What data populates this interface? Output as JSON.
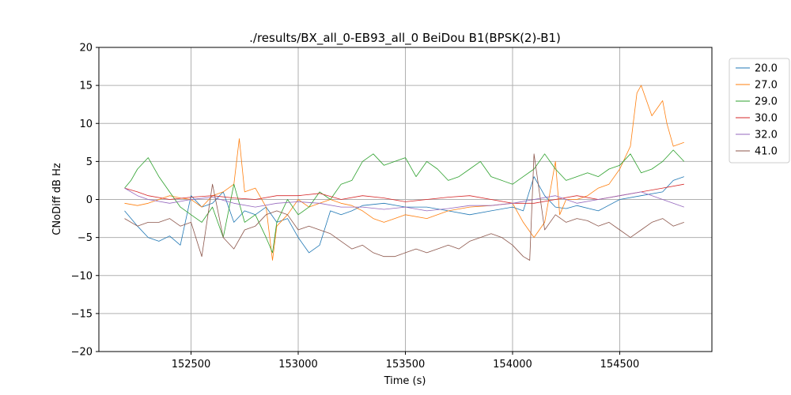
{
  "chart_data": {
    "type": "line",
    "title": "./results/BX_all_0-EB93_all_0 BeiDou B1(BPSK(2)-B1)",
    "xlabel": "Time (s)",
    "ylabel": "CNoDiff dB Hz",
    "xlim": [
      152070,
      154930
    ],
    "ylim": [
      -20,
      20
    ],
    "xticks": [
      152500,
      153000,
      153500,
      154000,
      154500
    ],
    "xtick_labels": [
      "152500",
      "153000",
      "153500",
      "154000",
      "154500"
    ],
    "yticks": [
      -20,
      -15,
      -10,
      -5,
      0,
      5,
      10,
      15,
      20
    ],
    "ytick_labels": [
      "−20",
      "−15",
      "−10",
      "−5",
      "0",
      "5",
      "10",
      "15",
      "20"
    ],
    "grid": true,
    "legend_position": "outside-top-right",
    "series": [
      {
        "name": "20.0",
        "color": "#1f77b4",
        "x": [
          152190,
          152250,
          152300,
          152350,
          152400,
          152450,
          152500,
          152550,
          152600,
          152650,
          152700,
          152750,
          152800,
          152850,
          152900,
          152950,
          153000,
          153050,
          153100,
          153150,
          153200,
          153250,
          153300,
          153400,
          153500,
          153600,
          153700,
          153800,
          153900,
          154000,
          154050,
          154100,
          154150,
          154200,
          154250,
          154300,
          154400,
          154500,
          154600,
          154700,
          154750,
          154800
        ],
        "y": [
          -1.5,
          -3.5,
          -5.0,
          -5.5,
          -4.8,
          -6.0,
          0.5,
          -1.0,
          -0.5,
          1.0,
          -3.0,
          -1.5,
          -2.0,
          -1.0,
          -3.0,
          -2.5,
          -5.0,
          -7.0,
          -6.0,
          -1.5,
          -2.0,
          -1.5,
          -0.8,
          -0.5,
          -1.0,
          -1.0,
          -1.5,
          -2.0,
          -1.5,
          -1.0,
          -1.5,
          3.0,
          0.5,
          -1.0,
          -1.2,
          -0.8,
          -1.5,
          0.0,
          0.5,
          1.0,
          2.5,
          3.0
        ]
      },
      {
        "name": "27.0",
        "color": "#ff7f0e",
        "x": [
          152190,
          152250,
          152300,
          152350,
          152400,
          152450,
          152500,
          152550,
          152600,
          152650,
          152700,
          152725,
          152750,
          152800,
          152850,
          152880,
          152900,
          152950,
          153000,
          153050,
          153100,
          153150,
          153200,
          153250,
          153300,
          153350,
          153400,
          153450,
          153500,
          153600,
          153700,
          153800,
          153900,
          154000,
          154050,
          154100,
          154150,
          154200,
          154220,
          154250,
          154300,
          154350,
          154400,
          154450,
          154500,
          154550,
          154580,
          154600,
          154650,
          154700,
          154720,
          154750,
          154800
        ],
        "y": [
          -0.5,
          -0.8,
          -0.5,
          0.0,
          0.5,
          0.2,
          0.0,
          -1.0,
          0.5,
          1.0,
          2.0,
          8.0,
          1.0,
          1.5,
          -1.0,
          -8.0,
          -3.5,
          -2.0,
          0.0,
          -1.0,
          -0.5,
          0.0,
          -0.5,
          -0.8,
          -1.5,
          -2.5,
          -3.0,
          -2.5,
          -2.0,
          -2.5,
          -1.5,
          -1.0,
          -0.8,
          -0.5,
          -3.0,
          -5.0,
          -3.0,
          5.0,
          -2.0,
          0.0,
          0.0,
          0.5,
          1.5,
          2.0,
          4.0,
          7.0,
          14.0,
          15.0,
          11.0,
          13.0,
          10.0,
          7.0,
          7.5
        ]
      },
      {
        "name": "29.0",
        "color": "#2ca02c",
        "x": [
          152190,
          152220,
          152250,
          152300,
          152350,
          152400,
          152450,
          152500,
          152550,
          152600,
          152650,
          152700,
          152750,
          152800,
          152850,
          152880,
          152900,
          152950,
          153000,
          153050,
          153100,
          153150,
          153200,
          153250,
          153300,
          153350,
          153400,
          153450,
          153500,
          153550,
          153600,
          153650,
          153700,
          153750,
          153800,
          153850,
          153900,
          153950,
          154000,
          154050,
          154100,
          154150,
          154200,
          154250,
          154300,
          154350,
          154400,
          154450,
          154500,
          154550,
          154600,
          154650,
          154700,
          154750,
          154800
        ],
        "y": [
          1.5,
          2.5,
          4.0,
          5.5,
          3.0,
          1.0,
          -1.0,
          -2.0,
          -3.0,
          -1.0,
          -5.0,
          2.0,
          -3.0,
          -2.0,
          -5.0,
          -7.0,
          -3.0,
          0.0,
          -2.0,
          -1.0,
          1.0,
          0.0,
          2.0,
          2.5,
          5.0,
          6.0,
          4.5,
          5.0,
          5.5,
          3.0,
          5.0,
          4.0,
          2.5,
          3.0,
          4.0,
          5.0,
          3.0,
          2.5,
          2.0,
          3.0,
          4.0,
          6.0,
          4.0,
          2.5,
          3.0,
          3.5,
          3.0,
          4.0,
          4.5,
          6.0,
          3.5,
          4.0,
          5.0,
          6.5,
          5.0
        ]
      },
      {
        "name": "30.0",
        "color": "#d62728",
        "x": [
          152190,
          152250,
          152300,
          152400,
          152500,
          152600,
          152700,
          152800,
          152900,
          153000,
          153100,
          153200,
          153300,
          153400,
          153500,
          153600,
          153700,
          153800,
          153900,
          154000,
          154100,
          154200,
          154300,
          154400,
          154500,
          154600,
          154700,
          154800
        ],
        "y": [
          1.5,
          1.0,
          0.5,
          0.0,
          0.3,
          0.5,
          0.2,
          0.0,
          0.5,
          0.5,
          0.8,
          0.0,
          0.5,
          0.2,
          -0.3,
          0.0,
          0.3,
          0.5,
          0.0,
          -0.5,
          -0.5,
          0.0,
          0.5,
          0.0,
          0.5,
          1.0,
          1.5,
          2.0
        ]
      },
      {
        "name": "32.0",
        "color": "#9467bd",
        "x": [
          152190,
          152250,
          152300,
          152400,
          152500,
          152600,
          152700,
          152800,
          152900,
          153000,
          153100,
          153200,
          153300,
          153400,
          153500,
          153600,
          153700,
          153800,
          153900,
          154000,
          154100,
          154200,
          154300,
          154400,
          154500,
          154600,
          154700,
          154800
        ],
        "y": [
          1.5,
          0.5,
          0.0,
          -0.5,
          0.0,
          0.3,
          -0.5,
          -1.0,
          -0.5,
          -0.3,
          -0.5,
          -1.0,
          -1.0,
          -1.3,
          -1.0,
          -1.5,
          -1.2,
          -0.8,
          -0.8,
          -0.5,
          0.0,
          0.5,
          -0.5,
          0.0,
          0.5,
          1.0,
          0.0,
          -1.0
        ]
      },
      {
        "name": "41.0",
        "color": "#8c564b",
        "x": [
          152190,
          152250,
          152300,
          152350,
          152400,
          152450,
          152500,
          152550,
          152600,
          152650,
          152700,
          152750,
          152800,
          152850,
          152900,
          152950,
          153000,
          153050,
          153100,
          153150,
          153200,
          153250,
          153300,
          153350,
          153400,
          153450,
          153500,
          153550,
          153600,
          153650,
          153700,
          153750,
          153800,
          153850,
          153900,
          153950,
          154000,
          154050,
          154080,
          154100,
          154150,
          154200,
          154250,
          154300,
          154350,
          154400,
          154450,
          154500,
          154550,
          154600,
          154650,
          154700,
          154750,
          154800
        ],
        "y": [
          -2.5,
          -3.5,
          -3.0,
          -3.0,
          -2.5,
          -3.5,
          -3.0,
          -7.5,
          2.0,
          -5.0,
          -6.5,
          -4.0,
          -3.5,
          -2.0,
          -1.5,
          -2.0,
          -4.0,
          -3.5,
          -4.0,
          -4.5,
          -5.5,
          -6.5,
          -6.0,
          -7.0,
          -7.5,
          -7.5,
          -7.0,
          -6.5,
          -7.0,
          -6.5,
          -6.0,
          -6.5,
          -5.5,
          -5.0,
          -4.5,
          -5.0,
          -6.0,
          -7.5,
          -8.0,
          6.0,
          -4.0,
          -2.0,
          -3.0,
          -2.5,
          -2.8,
          -3.5,
          -3.0,
          -4.0,
          -5.0,
          -4.0,
          -3.0,
          -2.5,
          -3.5,
          -3.0
        ]
      }
    ]
  }
}
